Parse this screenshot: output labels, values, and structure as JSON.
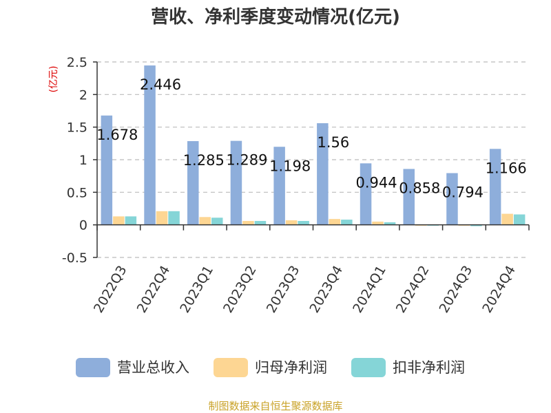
{
  "chart_data": {
    "type": "bar",
    "title": "营收、净利季度变动情况(亿元)",
    "ylabel": "(亿元)",
    "ylim": [
      -0.5,
      2.5
    ],
    "yticks": [
      "-0.5",
      "0",
      "0.5",
      "1",
      "1.5",
      "2",
      "2.5"
    ],
    "grid": true,
    "legend_position": "bottom",
    "categories": [
      "2022Q3",
      "2022Q4",
      "2023Q1",
      "2023Q2",
      "2023Q3",
      "2023Q4",
      "2024Q1",
      "2024Q2",
      "2024Q3",
      "2024Q4"
    ],
    "series": [
      {
        "name": "营业总收入",
        "color": "#8eaedb",
        "values": [
          1.678,
          2.446,
          1.285,
          1.289,
          1.198,
          1.56,
          0.944,
          0.858,
          0.794,
          1.166
        ],
        "labels": [
          "1.678",
          "2.446",
          "1.285",
          "1.289",
          "1.198",
          "1.56",
          "0.944",
          "0.858",
          "0.794",
          "1.166"
        ]
      },
      {
        "name": "归母净利润",
        "color": "#fdd693",
        "values": [
          0.13,
          0.21,
          0.12,
          0.06,
          0.07,
          0.09,
          0.05,
          0.0,
          -0.01,
          0.17
        ]
      },
      {
        "name": "扣非净利润",
        "color": "#85d5d7",
        "values": [
          0.13,
          0.21,
          0.11,
          0.06,
          0.06,
          0.08,
          0.04,
          -0.01,
          -0.02,
          0.16
        ]
      }
    ],
    "source": "制图数据来自恒生聚源数据库",
    "colors": {
      "ylabel": "#dd0000",
      "source": "#c9a227",
      "axis": "#333333",
      "grid": "#bbbbbb"
    }
  }
}
